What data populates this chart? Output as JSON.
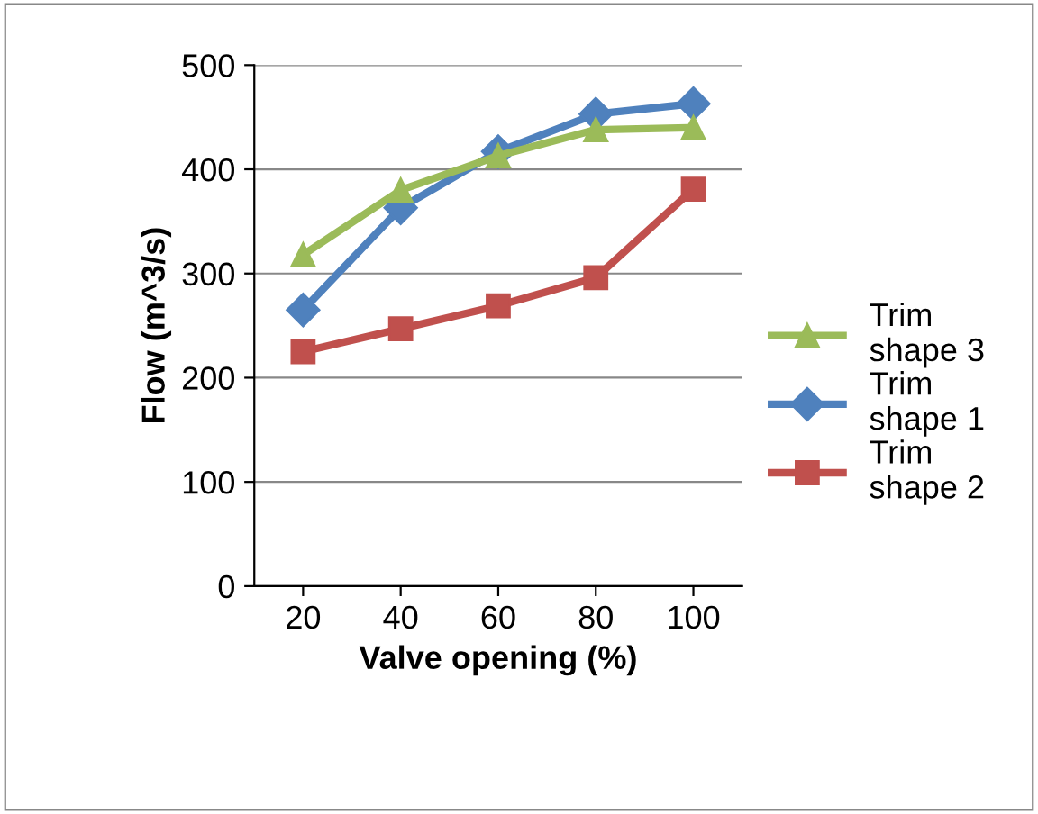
{
  "chart_data": {
    "type": "line",
    "xlabel": "Valve opening (%)",
    "ylabel": "Flow (m^3/s)",
    "categories": [
      "20",
      "40",
      "60",
      "80",
      "100"
    ],
    "series": [
      {
        "name": "Trim shape 3",
        "color": "#9bbb59",
        "marker": "triangle",
        "values": [
          318,
          380,
          413,
          438,
          440
        ]
      },
      {
        "name": "Trim shape 1",
        "color": "#4f81bd",
        "marker": "diamond",
        "values": [
          265,
          363,
          417,
          453,
          463
        ]
      },
      {
        "name": "Trim shape 2",
        "color": "#c0504d",
        "marker": "square",
        "values": [
          225,
          247,
          269,
          296,
          381
        ]
      }
    ],
    "ylim": [
      0,
      500
    ],
    "yticks": [
      0,
      100,
      200,
      300,
      400,
      500
    ],
    "grid": "y",
    "legend": "right",
    "line_style": "solid"
  }
}
